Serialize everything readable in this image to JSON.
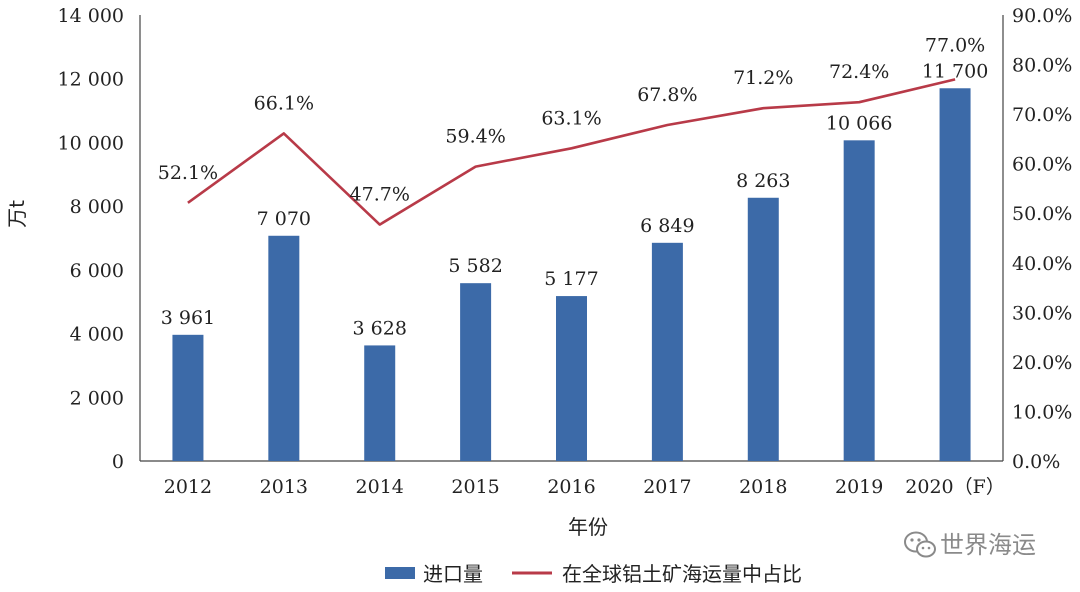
{
  "chart_data": {
    "type": "bar+line",
    "categories": [
      "2012",
      "2013",
      "2014",
      "2015",
      "2016",
      "2017",
      "2018",
      "2019",
      "2020（F）"
    ],
    "series": [
      {
        "name": "进口量",
        "type": "bar",
        "axis": "left",
        "color": "#3c6aa8",
        "values": [
          3961,
          7070,
          3628,
          5582,
          5177,
          6849,
          8263,
          10066,
          11700
        ],
        "labels": [
          "3 961",
          "7 070",
          "3 628",
          "5 582",
          "5 177",
          "6 849",
          "8 263",
          "10 066",
          "11 700"
        ]
      },
      {
        "name": "在全球铝土矿海运量中占比",
        "type": "line",
        "axis": "right",
        "color": "#b83a48",
        "values": [
          52.1,
          66.1,
          47.7,
          59.4,
          63.1,
          67.8,
          71.2,
          72.4,
          77.0
        ],
        "labels": [
          "52.1%",
          "66.1%",
          "47.7%",
          "59.4%",
          "63.1%",
          "67.8%",
          "71.2%",
          "72.4%",
          "77.0%"
        ]
      }
    ],
    "xlabel": "年份",
    "ylabel": "万t",
    "ylim": [
      0,
      14000
    ],
    "yticks": [
      "0",
      "2 000",
      "4 000",
      "6 000",
      "8 000",
      "10 000",
      "12 000",
      "14 000"
    ],
    "y2lim": [
      0,
      90
    ],
    "y2ticks": [
      "0.0%",
      "10.0%",
      "20.0%",
      "30.0%",
      "40.0%",
      "50.0%",
      "60.0%",
      "70.0%",
      "80.0%",
      "90.0%"
    ],
    "grid": false,
    "legend_position": "bottom"
  },
  "watermark": {
    "text": "世界海运",
    "icon": "wechat-icon",
    "color": "#8a8a8a"
  }
}
